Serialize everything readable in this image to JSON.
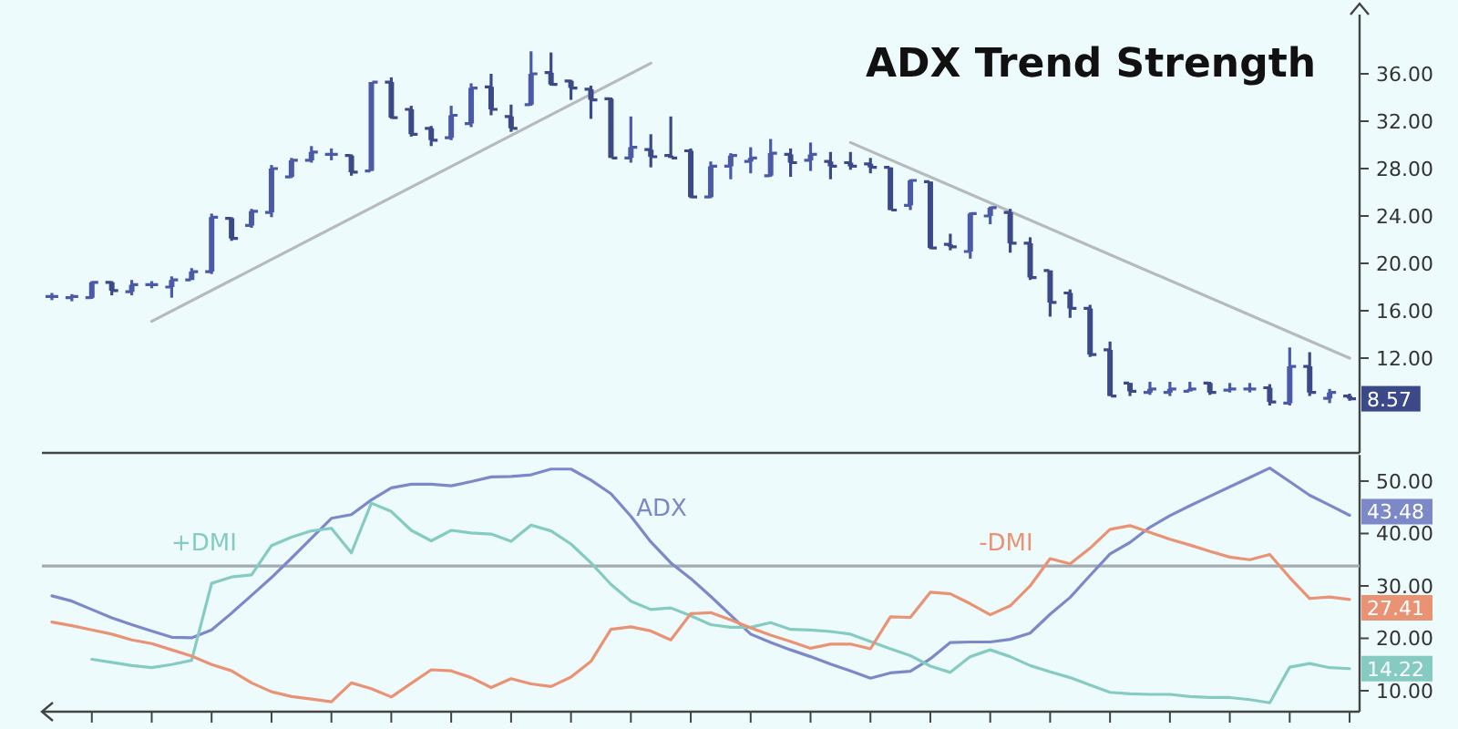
{
  "chart_data": [
    {
      "type": "candlestick",
      "title": "ADX Trend Strength",
      "colors": [
        "#4a5aa8",
        "#4a5aa8",
        "#4a5aa8",
        "#3c4988",
        "#4a5aa8",
        "#4a5aa8",
        "#4a5aa8",
        "#4a5aa8",
        "#4a5aa8",
        "#3c4988",
        "#4a5aa8",
        "#4a5aa8",
        "#4a5aa8",
        "#4a5aa8",
        "#4a5aa8",
        "#3c4988",
        "#4a5aa8",
        "#3c4988",
        "#3c4988",
        "#3c4988",
        "#4a5aa8",
        "#4a5aa8",
        "#3c4988",
        "#3c4988",
        "#4a5aa8",
        "#3c4988",
        "#3c4988",
        "#3c4988",
        "#3c4988",
        "#4a5aa8",
        "#3c4988",
        "#3c4988",
        "#3c4988",
        "#4a5aa8",
        "#4a5aa8",
        "#4a5aa8",
        "#4a5aa8",
        "#3c4988",
        "#4a5aa8",
        "#3c4988",
        "#3c4988",
        "#3c4988",
        "#3c4988",
        "#4a5aa8",
        "#3c4988",
        "#3c4988",
        "#4a5aa8",
        "#4a5aa8",
        "#3c4988",
        "#3c4988",
        "#3c4988",
        "#3c4988",
        "#3c4988",
        "#3c4988",
        "#3c4988",
        "#4a5aa8",
        "#4a5aa8",
        "#4a5aa8",
        "#3c4988",
        "#4a5aa8",
        "#4a5aa8",
        "#3c4988",
        "#4a5aa8",
        "#3c4988",
        "#4a5aa8",
        "#3c4988"
      ],
      "tick_labels": "y",
      "ylim": [
        4,
        41
      ],
      "yticks": [
        {
          "value": 12,
          "label": "12.00"
        },
        {
          "value": 16,
          "label": "16.00"
        },
        {
          "value": 20,
          "label": "20.00"
        },
        {
          "value": 24,
          "label": "24.00"
        },
        {
          "value": 28,
          "label": "28.00"
        },
        {
          "value": 32,
          "label": "32.00"
        },
        {
          "value": 36,
          "label": "36.00"
        }
      ],
      "categories": [
        null,
        null,
        null,
        null,
        null,
        null,
        null,
        null,
        null,
        null,
        null,
        null,
        null,
        null,
        null,
        null,
        null,
        null,
        null,
        null,
        null,
        null,
        null,
        null,
        null,
        null,
        null,
        null,
        null,
        null,
        null,
        null,
        null,
        null,
        null,
        null,
        null,
        null,
        null,
        null,
        null,
        null,
        null,
        null,
        null,
        null,
        null,
        null,
        null,
        null,
        null,
        null,
        null,
        null,
        null,
        null,
        null,
        null,
        null,
        null,
        null,
        null,
        null,
        null,
        null,
        null
      ],
      "ohlc": [
        [
          17.2,
          17.5,
          16.9,
          17.2
        ],
        [
          17.1,
          17.4,
          16.8,
          17.2
        ],
        [
          17.1,
          18.5,
          17.0,
          18.4
        ],
        [
          18.4,
          18.5,
          17.3,
          17.7
        ],
        [
          17.6,
          18.6,
          17.3,
          18.2
        ],
        [
          18.2,
          18.5,
          17.9,
          18.2
        ],
        [
          18.0,
          18.9,
          17.1,
          18.6
        ],
        [
          18.6,
          19.6,
          18.6,
          19.3
        ],
        [
          19.3,
          24.2,
          19.1,
          23.9
        ],
        [
          23.8,
          23.9,
          21.9,
          22.1
        ],
        [
          23.2,
          24.6,
          23.0,
          24.4
        ],
        [
          24.3,
          28.3,
          23.9,
          28.0
        ],
        [
          27.3,
          28.9,
          27.2,
          28.7
        ],
        [
          28.7,
          29.9,
          28.5,
          29.4
        ],
        [
          29.2,
          29.7,
          28.7,
          29.2
        ],
        [
          29.1,
          29.2,
          27.4,
          27.7
        ],
        [
          27.8,
          35.3,
          27.8,
          35.3
        ],
        [
          35.3,
          35.7,
          32.2,
          32.3
        ],
        [
          33.0,
          33.3,
          30.7,
          30.9
        ],
        [
          31.4,
          31.6,
          29.9,
          30.4
        ],
        [
          30.6,
          33.3,
          30.4,
          32.5
        ],
        [
          31.8,
          35.2,
          31.5,
          34.8
        ],
        [
          34.9,
          36.0,
          32.5,
          33.0
        ],
        [
          32.4,
          33.4,
          31.1,
          31.4
        ],
        [
          33.4,
          37.9,
          33.3,
          36.0
        ],
        [
          36.1,
          37.8,
          35.0,
          35.1
        ],
        [
          35.4,
          35.5,
          33.8,
          34.8
        ],
        [
          34.7,
          35.0,
          32.2,
          33.8
        ],
        [
          33.9,
          34.0,
          28.9,
          28.9
        ],
        [
          28.9,
          32.4,
          28.5,
          29.8
        ],
        [
          29.6,
          30.9,
          28.1,
          29.0
        ],
        [
          29.1,
          32.4,
          28.9,
          28.9
        ],
        [
          29.5,
          29.7,
          25.5,
          25.6
        ],
        [
          25.6,
          28.6,
          25.5,
          28.2
        ],
        [
          28.2,
          29.3,
          27.1,
          29.1
        ],
        [
          28.6,
          29.8,
          27.6,
          28.9
        ],
        [
          27.4,
          30.5,
          27.3,
          29.3
        ],
        [
          29.2,
          29.7,
          27.3,
          28.5
        ],
        [
          28.7,
          30.2,
          27.8,
          29.2
        ],
        [
          28.6,
          29.4,
          27.1,
          28.2
        ],
        [
          28.5,
          29.4,
          27.9,
          28.2
        ],
        [
          28.4,
          28.9,
          27.6,
          28.1
        ],
        [
          28.1,
          28.1,
          24.5,
          24.5
        ],
        [
          24.9,
          27.1,
          24.5,
          27.0
        ],
        [
          26.9,
          26.9,
          21.2,
          21.3
        ],
        [
          21.6,
          22.5,
          21.1,
          21.4
        ],
        [
          21.0,
          24.3,
          20.4,
          24.2
        ],
        [
          24.0,
          24.8,
          23.3,
          24.7
        ],
        [
          24.3,
          24.6,
          20.9,
          21.7
        ],
        [
          21.7,
          22.2,
          18.6,
          18.8
        ],
        [
          19.4,
          19.4,
          15.5,
          16.7
        ],
        [
          17.5,
          17.8,
          15.4,
          16.2
        ],
        [
          16.2,
          16.5,
          12.1,
          12.3
        ],
        [
          12.7,
          13.4,
          8.8,
          8.8
        ],
        [
          9.9,
          9.9,
          8.8,
          9.2
        ],
        [
          9.1,
          10.0,
          8.9,
          9.4
        ],
        [
          9.1,
          10.0,
          8.8,
          9.4
        ],
        [
          9.2,
          10.0,
          9.2,
          9.4
        ],
        [
          9.9,
          10.0,
          8.9,
          9.1
        ],
        [
          9.3,
          9.9,
          9.1,
          9.4
        ],
        [
          9.4,
          9.9,
          9.1,
          9.4
        ],
        [
          9.5,
          9.8,
          8.0,
          8.3
        ],
        [
          8.2,
          12.9,
          8.0,
          11.3
        ],
        [
          11.3,
          12.5,
          8.8,
          9.1
        ],
        [
          8.6,
          9.4,
          8.2,
          9.1
        ],
        [
          8.8,
          9.0,
          8.4,
          8.57
        ]
      ],
      "series": [
        {
          "type": "line",
          "color": "#b6babe",
          "values": [
            null,
            null,
            null,
            null,
            null,
            15.1,
            null,
            null,
            null,
            null,
            null,
            null,
            null,
            null,
            null,
            null,
            null,
            null,
            null,
            null,
            null,
            null,
            null,
            null,
            null,
            null,
            null,
            null,
            null,
            null,
            36.9,
            null,
            null,
            null,
            null,
            null,
            null,
            null,
            null,
            null,
            null,
            null,
            null,
            null,
            null,
            null,
            null,
            null,
            null,
            null,
            null,
            null,
            null,
            null,
            null,
            null,
            null,
            null,
            null,
            null,
            null,
            null,
            null,
            null,
            null,
            null
          ]
        },
        {
          "type": "line",
          "color": "#b6babe",
          "values": [
            null,
            null,
            null,
            null,
            null,
            null,
            null,
            null,
            null,
            null,
            null,
            null,
            null,
            null,
            null,
            null,
            null,
            null,
            null,
            null,
            null,
            null,
            null,
            null,
            null,
            null,
            null,
            null,
            null,
            null,
            null,
            null,
            null,
            null,
            null,
            null,
            null,
            null,
            null,
            null,
            30.2,
            null,
            null,
            null,
            null,
            null,
            null,
            null,
            null,
            null,
            null,
            null,
            null,
            null,
            null,
            null,
            null,
            null,
            null,
            null,
            null,
            null,
            null,
            null,
            null,
            12.0
          ]
        }
      ],
      "annotations": [
        {
          "text": "8.57",
          "y": 8.57
        }
      ]
    },
    {
      "type": "line",
      "tick_labels": "y",
      "ylim": [
        6,
        55
      ],
      "categories": [
        null,
        null,
        null,
        null,
        null,
        null,
        null,
        null,
        null,
        null,
        null,
        null,
        null,
        null,
        null,
        null,
        null,
        null,
        null,
        null,
        null,
        null,
        null,
        null,
        null,
        null,
        null,
        null,
        null,
        null,
        null,
        null,
        null,
        null,
        null,
        null,
        null,
        null,
        null,
        null,
        null,
        null,
        null,
        null,
        null,
        null,
        null,
        null,
        null,
        null,
        null,
        null,
        null,
        null,
        null,
        null,
        null,
        null,
        null,
        null,
        null,
        null,
        null,
        null,
        null,
        null
      ],
      "yticks": [
        {
          "value": 10,
          "label": "10.00"
        },
        {
          "value": 20,
          "label": "20.00"
        },
        {
          "value": 30,
          "label": "30.00"
        },
        {
          "value": 40,
          "label": "40.00"
        },
        {
          "value": 50,
          "label": "50.00"
        }
      ],
      "ref_lines": [
        {
          "axis": "y",
          "value": 33.8,
          "color": "#a3abb0"
        }
      ],
      "series": [
        {
          "name": "ADX",
          "color": "#7d88c8",
          "values": [
            28.1,
            27.1,
            25.5,
            23.9,
            22.6,
            21.4,
            20.2,
            20.1,
            21.6,
            24.8,
            28.2,
            31.6,
            35.3,
            39.1,
            42.9,
            43.6,
            46.4,
            48.7,
            49.4,
            49.4,
            49.1,
            49.9,
            50.8,
            50.9,
            51.2,
            52.3,
            52.3,
            50.2,
            47.6,
            43.3,
            38.4,
            34.4,
            31.4,
            28.0,
            24.4,
            20.8,
            19.2,
            17.8,
            16.5,
            15.1,
            13.8,
            12.4,
            13.4,
            13.7,
            16.1,
            19.2,
            19.3,
            19.3,
            19.8,
            21.0,
            24.6,
            27.8,
            32.0,
            36.1,
            38.3,
            41.2,
            43.4,
            45.3,
            47.1,
            48.9,
            50.7,
            52.5,
            49.9,
            47.3,
            45.4,
            43.48
          ],
          "value_labels": [
            null,
            null,
            null,
            null,
            null,
            null,
            null,
            null,
            null,
            null,
            null,
            null,
            null,
            null,
            null,
            null,
            null,
            null,
            null,
            null,
            null,
            null,
            null,
            null,
            null,
            null,
            null,
            null,
            null,
            null,
            null,
            null,
            null,
            null,
            null,
            null,
            null,
            null,
            null,
            null,
            null,
            null,
            null,
            null,
            null,
            null,
            null,
            null,
            null,
            null,
            null,
            null,
            null,
            null,
            null,
            null,
            null,
            null,
            null,
            null,
            null,
            null,
            null,
            null,
            null,
            "43.48"
          ]
        },
        {
          "name": "+DMI",
          "color": "#86cbc2",
          "values": [
            null,
            null,
            16.0,
            15.4,
            14.8,
            14.4,
            15.0,
            15.8,
            30.5,
            31.7,
            32.1,
            37.7,
            39.3,
            40.5,
            41.0,
            36.3,
            45.8,
            44.2,
            40.6,
            38.6,
            40.6,
            40.1,
            39.9,
            38.5,
            41.6,
            40.5,
            38.0,
            34.4,
            30.3,
            27.1,
            25.5,
            25.8,
            24.3,
            22.6,
            22.1,
            22.1,
            23.0,
            21.7,
            21.6,
            21.3,
            20.8,
            19.4,
            18.0,
            16.7,
            14.7,
            13.5,
            16.5,
            17.8,
            16.5,
            14.8,
            13.6,
            12.5,
            11.1,
            9.7,
            9.4,
            9.3,
            9.3,
            8.9,
            8.7,
            8.7,
            8.3,
            7.7,
            14.5,
            15.2,
            14.4,
            14.22
          ],
          "value_labels": [
            null,
            null,
            null,
            null,
            null,
            null,
            null,
            null,
            null,
            null,
            null,
            null,
            null,
            null,
            null,
            null,
            null,
            null,
            null,
            null,
            null,
            null,
            null,
            null,
            null,
            null,
            null,
            null,
            null,
            null,
            null,
            null,
            null,
            null,
            null,
            null,
            null,
            null,
            null,
            null,
            null,
            null,
            null,
            null,
            null,
            null,
            null,
            null,
            null,
            null,
            null,
            null,
            null,
            null,
            null,
            null,
            null,
            null,
            null,
            null,
            null,
            null,
            null,
            null,
            null,
            "14.22"
          ]
        },
        {
          "name": "-DMI",
          "color": "#ea9274",
          "values": [
            23.1,
            22.4,
            21.6,
            20.8,
            19.7,
            19.0,
            17.8,
            16.6,
            15.0,
            13.8,
            11.5,
            9.8,
            8.9,
            8.4,
            7.9,
            11.5,
            10.4,
            8.8,
            11.4,
            14.0,
            13.8,
            12.5,
            10.6,
            12.3,
            11.3,
            10.8,
            12.6,
            15.6,
            21.7,
            22.2,
            21.4,
            19.7,
            24.7,
            24.9,
            23.5,
            22.0,
            20.6,
            19.4,
            18.1,
            18.9,
            18.9,
            18.0,
            24.1,
            24.0,
            28.8,
            28.5,
            26.6,
            24.5,
            26.2,
            30.0,
            35.2,
            34.2,
            37.2,
            40.8,
            41.5,
            40.2,
            38.9,
            37.8,
            36.6,
            35.5,
            35.0,
            36.0,
            31.6,
            27.6,
            27.9,
            27.41
          ],
          "value_labels": [
            null,
            null,
            null,
            null,
            null,
            null,
            null,
            null,
            null,
            null,
            null,
            null,
            null,
            null,
            null,
            null,
            null,
            null,
            null,
            null,
            null,
            null,
            null,
            null,
            null,
            null,
            null,
            null,
            null,
            null,
            null,
            null,
            null,
            null,
            null,
            null,
            null,
            null,
            null,
            null,
            null,
            null,
            null,
            null,
            null,
            null,
            null,
            null,
            null,
            null,
            null,
            null,
            null,
            null,
            null,
            null,
            null,
            null,
            null,
            null,
            null,
            null,
            null,
            null,
            null,
            "27.41"
          ]
        }
      ]
    }
  ]
}
